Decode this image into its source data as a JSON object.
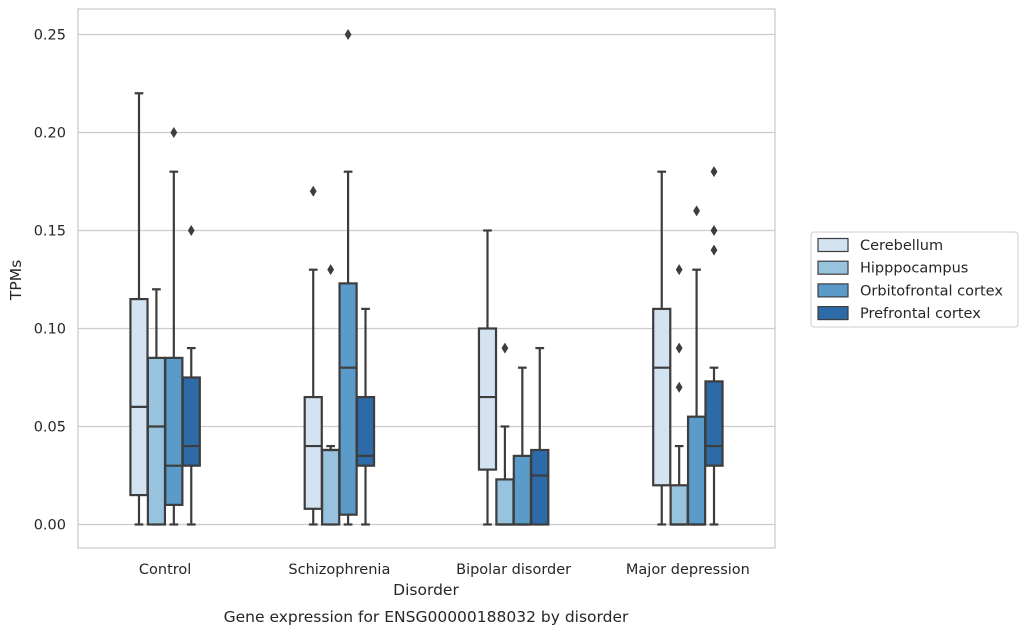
{
  "chart_data": {
    "type": "box",
    "title": "",
    "caption": "Gene expression for ENSG00000188032 by disorder",
    "xlabel": "Disorder",
    "ylabel": "TPMs",
    "ylim": [
      -0.012,
      0.263
    ],
    "yticks": [
      0.0,
      0.05,
      0.1,
      0.15,
      0.2,
      0.25
    ],
    "ytick_labels": [
      "0.00",
      "0.05",
      "0.10",
      "0.15",
      "0.20",
      "0.25"
    ],
    "grid": "horizontal",
    "legend_position": "right",
    "categories": [
      "Control",
      "Schizophrenia",
      "Bipolar disorder",
      "Major depression"
    ],
    "series": [
      {
        "name": "Cerebellum",
        "color": "#d4e3f2",
        "boxes": [
          {
            "whisker_low": 0.0,
            "q1": 0.015,
            "median": 0.06,
            "q3": 0.115,
            "whisker_high": 0.22,
            "outliers": []
          },
          {
            "whisker_low": 0.0,
            "q1": 0.008,
            "median": 0.04,
            "q3": 0.065,
            "whisker_high": 0.13,
            "outliers": [
              0.17
            ]
          },
          {
            "whisker_low": 0.0,
            "q1": 0.028,
            "median": 0.065,
            "q3": 0.1,
            "whisker_high": 0.15,
            "outliers": []
          },
          {
            "whisker_low": 0.0,
            "q1": 0.02,
            "median": 0.08,
            "q3": 0.11,
            "whisker_high": 0.18,
            "outliers": []
          }
        ]
      },
      {
        "name": "Hipppocampus",
        "color": "#98c3df",
        "boxes": [
          {
            "whisker_low": 0.0,
            "q1": 0.0,
            "median": 0.05,
            "q3": 0.085,
            "whisker_high": 0.12,
            "outliers": []
          },
          {
            "whisker_low": 0.0,
            "q1": 0.0,
            "median": 0.038,
            "q3": 0.038,
            "whisker_high": 0.04,
            "outliers": [
              0.13
            ]
          },
          {
            "whisker_low": 0.0,
            "q1": 0.0,
            "median": 0.0,
            "q3": 0.023,
            "whisker_high": 0.05,
            "outliers": [
              0.09
            ]
          },
          {
            "whisker_low": 0.0,
            "q1": 0.0,
            "median": 0.0,
            "q3": 0.02,
            "whisker_high": 0.04,
            "outliers": [
              0.07,
              0.09,
              0.13
            ]
          }
        ]
      },
      {
        "name": "Orbitofrontal cortex",
        "color": "#5a9bc9",
        "boxes": [
          {
            "whisker_low": 0.0,
            "q1": 0.01,
            "median": 0.03,
            "q3": 0.085,
            "whisker_high": 0.18,
            "outliers": [
              0.2
            ]
          },
          {
            "whisker_low": 0.0,
            "q1": 0.005,
            "median": 0.08,
            "q3": 0.123,
            "whisker_high": 0.18,
            "outliers": [
              0.25
            ]
          },
          {
            "whisker_low": 0.0,
            "q1": 0.0,
            "median": 0.0,
            "q3": 0.035,
            "whisker_high": 0.08,
            "outliers": []
          },
          {
            "whisker_low": 0.0,
            "q1": 0.0,
            "median": 0.0,
            "q3": 0.055,
            "whisker_high": 0.13,
            "outliers": [
              0.16
            ]
          }
        ]
      },
      {
        "name": "Prefrontal cortex",
        "color": "#2d6aa8",
        "boxes": [
          {
            "whisker_low": 0.0,
            "q1": 0.03,
            "median": 0.04,
            "q3": 0.075,
            "whisker_high": 0.09,
            "outliers": [
              0.15
            ]
          },
          {
            "whisker_low": 0.0,
            "q1": 0.03,
            "median": 0.035,
            "q3": 0.065,
            "whisker_high": 0.11,
            "outliers": []
          },
          {
            "whisker_low": 0.0,
            "q1": 0.0,
            "median": 0.025,
            "q3": 0.038,
            "whisker_high": 0.09,
            "outliers": []
          },
          {
            "whisker_low": 0.0,
            "q1": 0.03,
            "median": 0.04,
            "q3": 0.073,
            "whisker_high": 0.08,
            "outliers": [
              0.14,
              0.15,
              0.18
            ]
          }
        ]
      }
    ]
  }
}
